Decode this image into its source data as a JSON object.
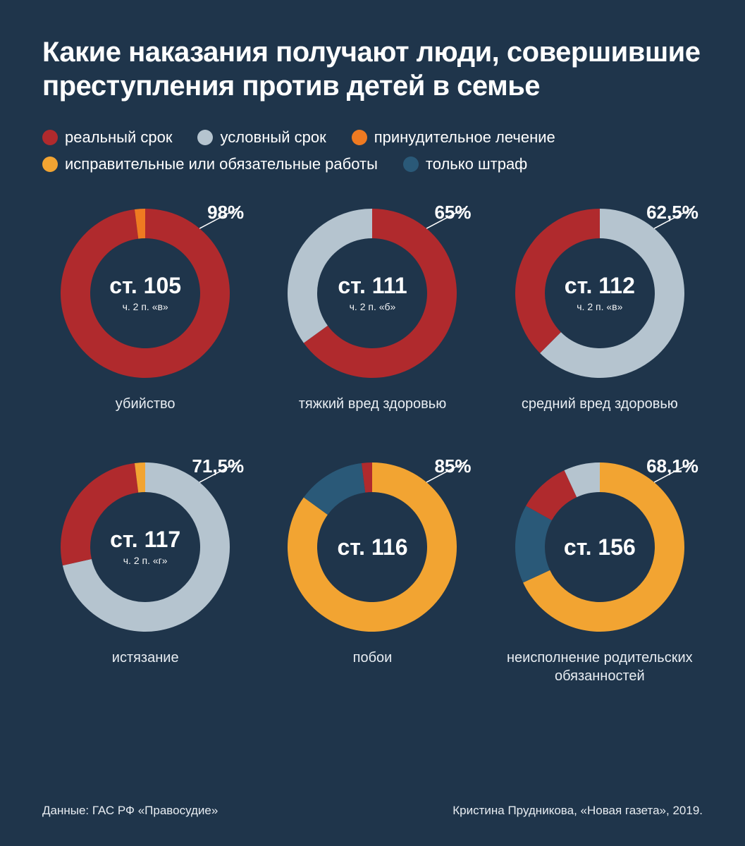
{
  "title": "Какие наказания получают люди, совершившие преступления против детей в семье",
  "legend": [
    {
      "label": "реальный срок",
      "color": "#b02a2d"
    },
    {
      "label": "условный срок",
      "color": "#b5c4cf"
    },
    {
      "label": "принудительное лечение",
      "color": "#ef7a21"
    },
    {
      "label": "исправительные или обязательные работы",
      "color": "#f2a432"
    },
    {
      "label": "только штраф",
      "color": "#2a5978"
    }
  ],
  "colors": {
    "real": "#b02a2d",
    "suspended": "#b5c4cf",
    "treatment": "#ef7a21",
    "labor": "#f2a432",
    "fine": "#2a5978",
    "bg": "#1f354b",
    "text": "#ffffff"
  },
  "donut": {
    "outer_r": 120,
    "inner_r": 78,
    "start_angle_deg": 0
  },
  "charts": [
    {
      "article": "ст. 105",
      "part": "ч. 2 п. «в»",
      "caption": "убийство",
      "callout": "98%",
      "highlight_key": "real",
      "slices": [
        {
          "key": "real",
          "value": 98
        },
        {
          "key": "treatment",
          "value": 2
        }
      ]
    },
    {
      "article": "ст. 111",
      "part": "ч. 2 п. «б»",
      "caption": "тяжкий вред здоровью",
      "callout": "65%",
      "highlight_key": "real",
      "slices": [
        {
          "key": "real",
          "value": 65
        },
        {
          "key": "suspended",
          "value": 35
        }
      ]
    },
    {
      "article": "ст. 112",
      "part": "ч. 2 п. «в»",
      "caption": "средний вред здоровью",
      "callout": "62,5%",
      "highlight_key": "suspended",
      "slices": [
        {
          "key": "suspended",
          "value": 62.5
        },
        {
          "key": "real",
          "value": 37.5
        }
      ]
    },
    {
      "article": "ст. 117",
      "part": "ч. 2 п. «г»",
      "caption": "истязание",
      "callout": "71,5%",
      "highlight_key": "suspended",
      "slices": [
        {
          "key": "suspended",
          "value": 71.5
        },
        {
          "key": "real",
          "value": 26.5
        },
        {
          "key": "labor",
          "value": 2
        }
      ]
    },
    {
      "article": "ст. 116",
      "part": "",
      "caption": "побои",
      "callout": "85%",
      "highlight_key": "labor",
      "slices": [
        {
          "key": "labor",
          "value": 85
        },
        {
          "key": "fine",
          "value": 13
        },
        {
          "key": "real",
          "value": 2
        }
      ]
    },
    {
      "article": "ст. 156",
      "part": "",
      "caption": "неисполнение родительских обязанностей",
      "callout": "68,1%",
      "highlight_key": "labor",
      "slices": [
        {
          "key": "labor",
          "value": 68.1
        },
        {
          "key": "fine",
          "value": 15
        },
        {
          "key": "real",
          "value": 10
        },
        {
          "key": "suspended",
          "value": 6.9
        }
      ]
    }
  ],
  "footer": {
    "left": "Данные: ГАС РФ «Правосудие»",
    "right": "Кристина Прудникова, «Новая газета», 2019."
  }
}
